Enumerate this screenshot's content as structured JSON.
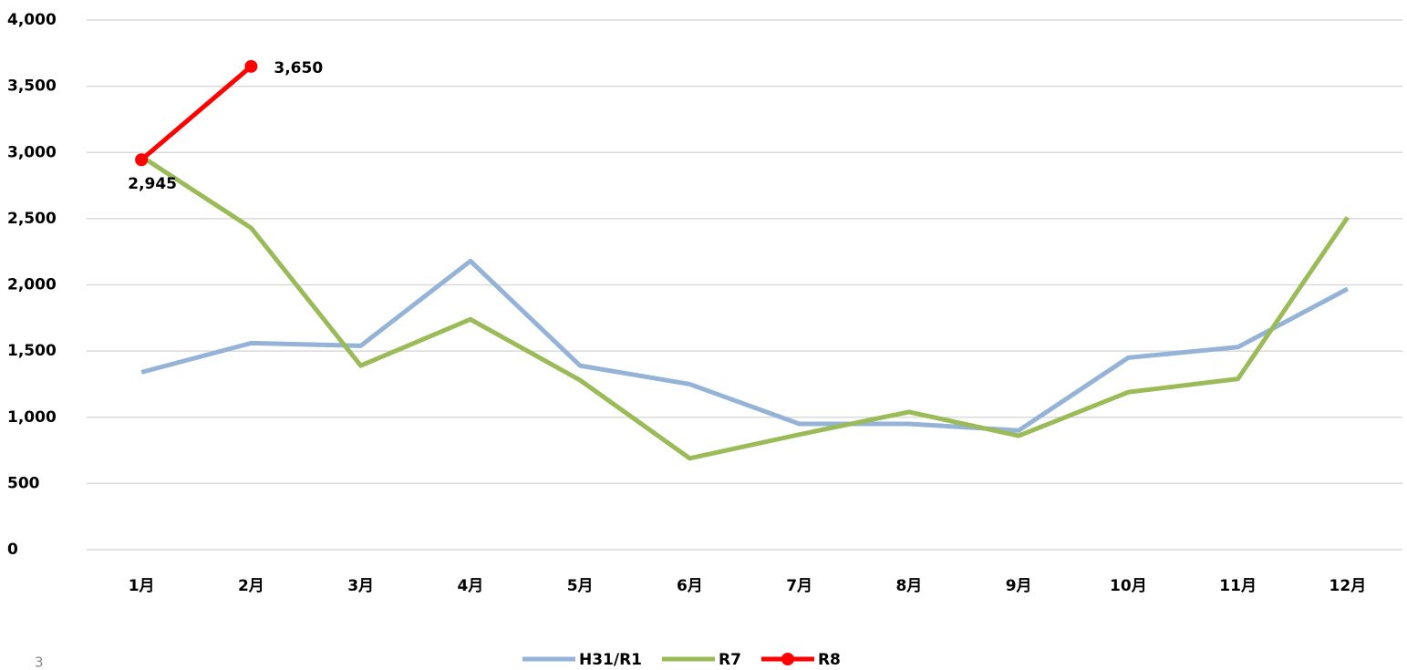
{
  "page_number": "3",
  "chart_data": {
    "type": "line",
    "categories": [
      "1月",
      "2月",
      "3月",
      "4月",
      "5月",
      "6月",
      "7月",
      "8月",
      "9月",
      "10月",
      "11月",
      "12月"
    ],
    "ylim": [
      0,
      4000
    ],
    "yticks": [
      0,
      500,
      {
        "value": 1000,
        "label": "1,000"
      },
      {
        "value": 1500,
        "label": "1,500"
      },
      {
        "value": 2000,
        "label": "2,000"
      },
      {
        "value": 2500,
        "label": "2,500"
      },
      {
        "value": 3000,
        "label": "3,000"
      },
      {
        "value": 3500,
        "label": "3,500"
      },
      {
        "value": 4000,
        "label": "4,000"
      }
    ],
    "grid": true,
    "legend": "bottom",
    "series": [
      {
        "name": "H31/R1",
        "color": "#95b3d7",
        "values": [
          1340,
          1560,
          1540,
          2180,
          1390,
          1250,
          950,
          950,
          900,
          1450,
          1530,
          1970
        ]
      },
      {
        "name": "R7",
        "color": "#9bbb59",
        "values": [
          2970,
          2430,
          1390,
          1740,
          1280,
          690,
          870,
          1040,
          860,
          1190,
          1290,
          2510
        ]
      },
      {
        "name": "R8",
        "color": "#ff0000",
        "marker": true,
        "values": [
          2945,
          3650,
          null,
          null,
          null,
          null,
          null,
          null,
          null,
          null,
          null,
          null
        ],
        "value_labels": [
          "2,945",
          "3,650",
          null,
          null,
          null,
          null,
          null,
          null,
          null,
          null,
          null,
          null
        ]
      }
    ]
  }
}
